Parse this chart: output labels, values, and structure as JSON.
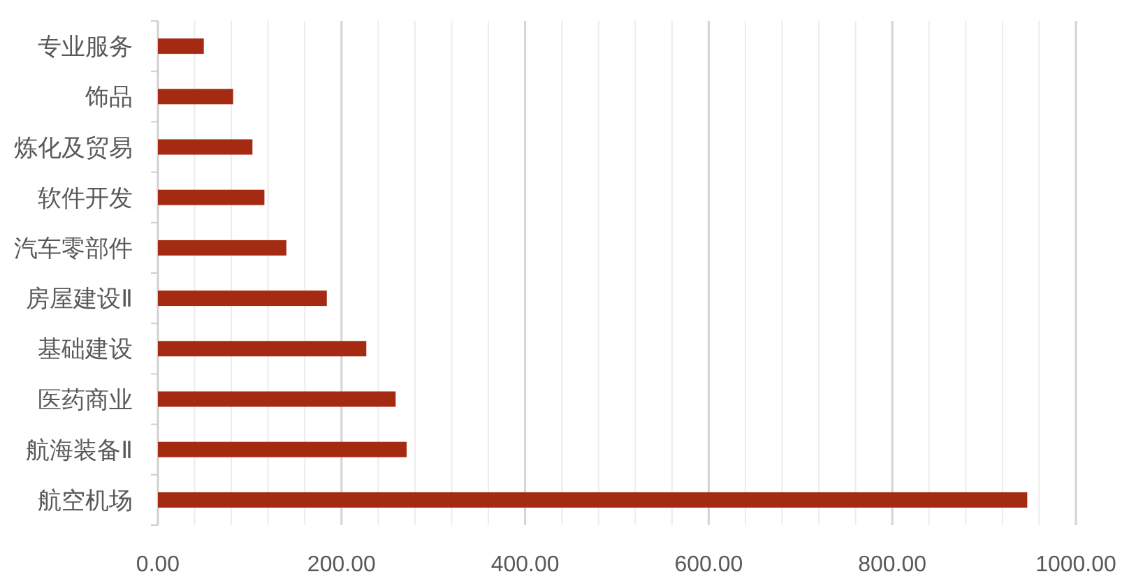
{
  "chart_data": {
    "type": "bar",
    "orientation": "horizontal",
    "categories": [
      "专业服务",
      "饰品",
      "炼化及贸易",
      "软件开发",
      "汽车零部件",
      "房屋建设Ⅱ",
      "基础建设",
      "医药商业",
      "航海装备Ⅱ",
      "航空机场"
    ],
    "values": [
      50,
      82,
      103,
      116,
      140,
      184,
      227,
      259,
      271,
      947
    ],
    "color": "#a52a12",
    "xlim": [
      0,
      1000
    ],
    "xticks": [
      {
        "value": 0,
        "label": "0.00"
      },
      {
        "value": 40,
        "label": null
      },
      {
        "value": 80,
        "label": null
      },
      {
        "value": 120,
        "label": null
      },
      {
        "value": 160,
        "label": null
      },
      {
        "value": 200,
        "label": "200.00"
      },
      {
        "value": 240,
        "label": null
      },
      {
        "value": 280,
        "label": null
      },
      {
        "value": 320,
        "label": null
      },
      {
        "value": 360,
        "label": null
      },
      {
        "value": 400,
        "label": "400.00"
      },
      {
        "value": 440,
        "label": null
      },
      {
        "value": 480,
        "label": null
      },
      {
        "value": 520,
        "label": null
      },
      {
        "value": 560,
        "label": null
      },
      {
        "value": 600,
        "label": "600.00"
      },
      {
        "value": 640,
        "label": null
      },
      {
        "value": 680,
        "label": null
      },
      {
        "value": 720,
        "label": null
      },
      {
        "value": 760,
        "label": null
      },
      {
        "value": 800,
        "label": "800.00"
      },
      {
        "value": 840,
        "label": null
      },
      {
        "value": 880,
        "label": null
      },
      {
        "value": 920,
        "label": null
      },
      {
        "value": 960,
        "label": null
      },
      {
        "value": 1000,
        "label": "1000.00"
      }
    ],
    "grid": "x"
  }
}
